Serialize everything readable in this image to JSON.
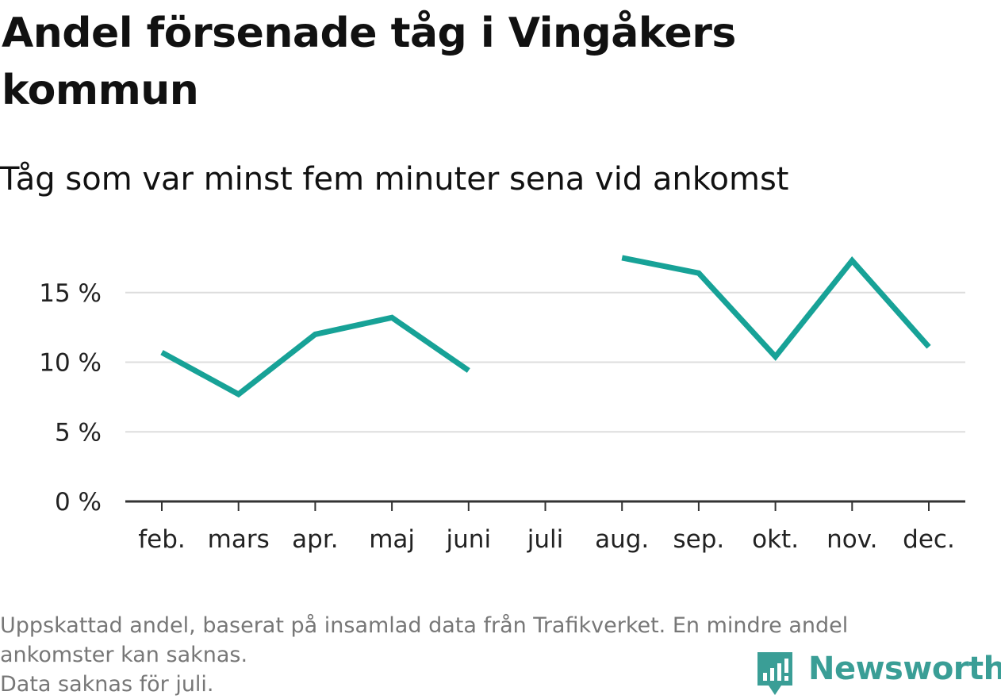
{
  "header": {
    "title": "Andel försenade tåg i Vingåkers kommun",
    "subtitle": "Tåg som var minst fem minuter sena vid ankomst"
  },
  "footer": {
    "note_line1": "Uppskattad andel, baserat på insamlad data från Trafikverket. En mindre andel",
    "note_line2": "ankomster kan saknas.",
    "note_line3": "Data saknas för juli."
  },
  "brand": {
    "name": "Newsworthy",
    "icon": "newsworthy-logo-icon",
    "color": "#3a9e96"
  },
  "chart_data": {
    "type": "line",
    "title": "Andel försenade tåg i Vingåkers kommun",
    "subtitle": "Tåg som var minst fem minuter sena vid ankomst",
    "xlabel": "",
    "ylabel": "",
    "categories": [
      "feb.",
      "mars",
      "apr.",
      "maj",
      "juni",
      "juli",
      "aug.",
      "sep.",
      "okt.",
      "nov.",
      "dec."
    ],
    "series": [
      {
        "values": [
          10.7,
          7.7,
          12.0,
          13.2,
          9.4,
          null,
          17.5,
          16.4,
          10.4,
          17.3,
          11.1
        ],
        "color": "#17a297"
      }
    ],
    "yticks": [
      0,
      5,
      10,
      15
    ],
    "ytick_labels": [
      "0 %",
      "5 %",
      "10 %",
      "15 %"
    ],
    "ylim": [
      0,
      18
    ],
    "grid": true,
    "legend": "none"
  }
}
